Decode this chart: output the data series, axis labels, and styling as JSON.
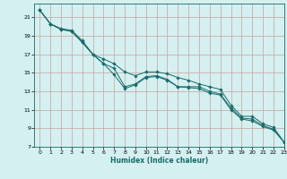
{
  "title": "",
  "xlabel": "Humidex (Indice chaleur)",
  "ylabel": "",
  "bg_color": "#d4f0f0",
  "grid_color": "#c8a0a0",
  "line_color": "#1a6b6b",
  "xlim": [
    -0.5,
    23
  ],
  "ylim": [
    7,
    22.5
  ],
  "yticks": [
    7,
    9,
    11,
    13,
    15,
    17,
    19,
    21
  ],
  "xticks": [
    0,
    1,
    2,
    3,
    4,
    5,
    6,
    7,
    8,
    9,
    10,
    11,
    12,
    13,
    14,
    15,
    16,
    17,
    18,
    19,
    20,
    21,
    22,
    23
  ],
  "series1_x": [
    0,
    1,
    2,
    3,
    4,
    5,
    6,
    7,
    8,
    9,
    10,
    11,
    12,
    13,
    14,
    15,
    16,
    17,
    18,
    19,
    20,
    21,
    22,
    23
  ],
  "series1_y": [
    21.8,
    20.3,
    19.8,
    19.6,
    18.5,
    17.0,
    16.5,
    16.0,
    15.1,
    14.7,
    15.1,
    15.1,
    14.9,
    14.5,
    14.2,
    13.8,
    13.5,
    13.2,
    11.5,
    10.3,
    10.3,
    9.5,
    9.1,
    7.5
  ],
  "series2_x": [
    0,
    1,
    2,
    3,
    4,
    5,
    6,
    7,
    8,
    9,
    10,
    11,
    12,
    13,
    14,
    15,
    16,
    17,
    18,
    19,
    20,
    21,
    22,
    23
  ],
  "series2_y": [
    21.8,
    20.3,
    19.7,
    19.5,
    18.3,
    17.0,
    16.0,
    15.5,
    13.5,
    13.8,
    14.6,
    14.7,
    14.3,
    13.5,
    13.5,
    13.5,
    13.0,
    12.7,
    11.2,
    10.1,
    10.0,
    9.3,
    8.9,
    7.5
  ],
  "series3_x": [
    0,
    1,
    2,
    3,
    4,
    5,
    6,
    7,
    8,
    9,
    10,
    11,
    12,
    13,
    14,
    15,
    16,
    17,
    18,
    19,
    20,
    21,
    22,
    23
  ],
  "series3_y": [
    21.8,
    20.3,
    19.7,
    19.5,
    18.3,
    17.0,
    16.0,
    14.8,
    13.3,
    13.7,
    14.5,
    14.6,
    14.2,
    13.5,
    13.4,
    13.3,
    12.8,
    12.6,
    11.0,
    10.0,
    9.8,
    9.2,
    8.8,
    7.5
  ]
}
